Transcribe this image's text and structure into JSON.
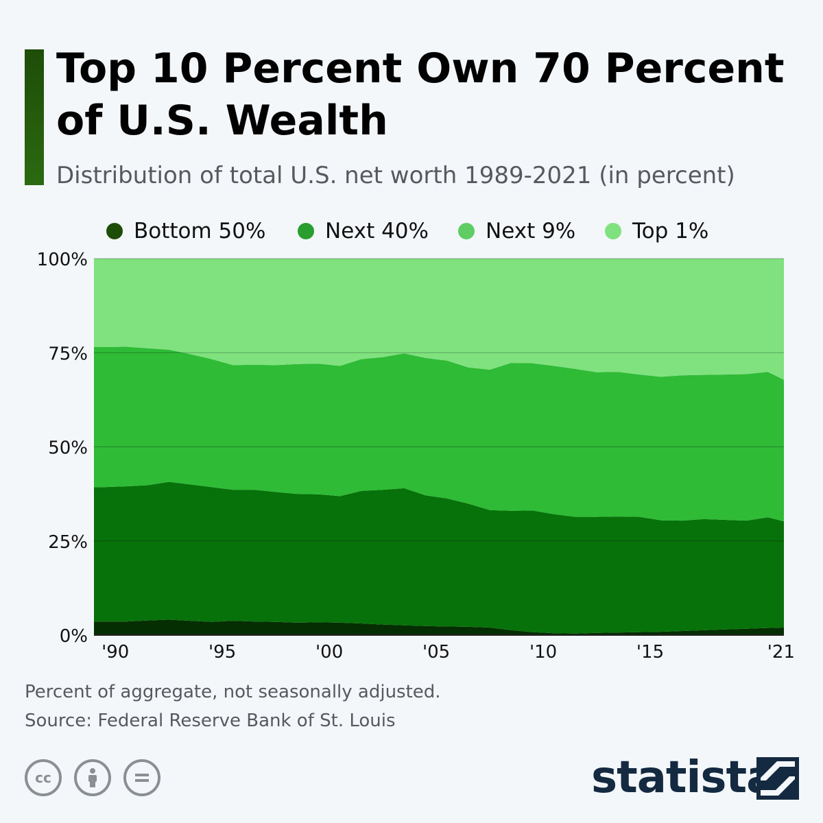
{
  "header": {
    "title": "Top 10 Percent Own 70 Percent of U.S. Wealth",
    "subtitle": "Distribution of total U.S. net worth 1989-2021 (in percent)"
  },
  "legend": [
    {
      "label": "Bottom 50%",
      "color": "#1e4d08"
    },
    {
      "label": "Next 40%",
      "color": "#2a9d2f"
    },
    {
      "label": "Next 9%",
      "color": "#5fcd63"
    },
    {
      "label": "Top 1%",
      "color": "#7fe27f"
    }
  ],
  "footer": {
    "note": "Percent of aggregate, not seasonally adjusted.",
    "source": "Source: Federal Reserve Bank of St. Louis",
    "brand": "statista"
  },
  "license_icons": [
    "creative-commons-icon",
    "attribution-icon",
    "no-derivatives-icon"
  ],
  "chart_data": {
    "type": "area",
    "stacked": true,
    "x": [
      1989.5,
      1990.5,
      1991.5,
      1992.5,
      1993.5,
      1994.5,
      1995.5,
      1996.5,
      1997.5,
      1998.5,
      1999.5,
      2000.5,
      2001.5,
      2002.5,
      2003.5,
      2004.5,
      2005.5,
      2006.5,
      2007.5,
      2008.5,
      2009.5,
      2010.5,
      2011.5,
      2012.5,
      2013.5,
      2014.5,
      2015.5,
      2016.5,
      2017.5,
      2018.5,
      2019.5,
      2020.5,
      2021.25
    ],
    "series": [
      {
        "name": "Bottom 50%",
        "color": "#052e02",
        "values": [
          3.6,
          3.6,
          3.9,
          4.1,
          3.8,
          3.5,
          3.8,
          3.6,
          3.5,
          3.3,
          3.4,
          3.3,
          3.1,
          2.8,
          2.6,
          2.4,
          2.3,
          2.2,
          2.0,
          1.3,
          0.8,
          0.5,
          0.4,
          0.6,
          0.7,
          0.8,
          0.9,
          1.1,
          1.3,
          1.5,
          1.7,
          1.9,
          2.0
        ]
      },
      {
        "name": "Next 40%",
        "color": "#077209",
        "values": [
          35.7,
          35.9,
          35.9,
          36.6,
          36.2,
          35.8,
          34.8,
          35.0,
          34.5,
          34.2,
          34.0,
          33.6,
          35.2,
          35.8,
          36.4,
          34.7,
          34.0,
          32.7,
          31.2,
          31.7,
          32.3,
          31.6,
          31.0,
          30.8,
          30.8,
          30.6,
          29.6,
          29.3,
          29.5,
          29.1,
          28.7,
          29.4,
          28.2
        ]
      },
      {
        "name": "Next 9%",
        "color": "#2fbb35",
        "values": [
          37.2,
          37.1,
          36.4,
          35.1,
          34.6,
          34.0,
          33.1,
          33.2,
          33.7,
          34.5,
          34.7,
          34.6,
          35.0,
          35.2,
          35.8,
          36.5,
          36.6,
          36.2,
          37.3,
          39.3,
          39.1,
          39.4,
          39.3,
          38.4,
          38.4,
          37.8,
          38.1,
          38.6,
          38.3,
          38.6,
          38.9,
          38.6,
          37.6
        ]
      },
      {
        "name": "Top 1%",
        "color": "#7fe27f",
        "values": [
          23.5,
          23.4,
          23.8,
          24.2,
          25.4,
          26.7,
          28.3,
          28.2,
          28.3,
          28.0,
          27.9,
          28.5,
          26.7,
          26.2,
          25.2,
          26.4,
          27.1,
          28.9,
          29.5,
          27.7,
          27.8,
          28.5,
          29.3,
          30.2,
          30.1,
          30.8,
          31.4,
          31.0,
          30.9,
          30.8,
          30.7,
          30.1,
          32.2
        ]
      }
    ],
    "xlim": [
      1989.0,
      2021.25
    ],
    "ylim": [
      0,
      100
    ],
    "yticks": [
      0,
      25,
      50,
      75,
      100
    ],
    "ytick_labels": [
      "0%",
      "25%",
      "50%",
      "75%",
      "100%"
    ],
    "xticks": [
      1990,
      1995,
      2000,
      2005,
      2010,
      2015,
      2021
    ],
    "xtick_labels": [
      "'90",
      "'95",
      "'00",
      "'05",
      "'10",
      "'15",
      "'21"
    ],
    "grid": true,
    "legend_position": "top"
  }
}
